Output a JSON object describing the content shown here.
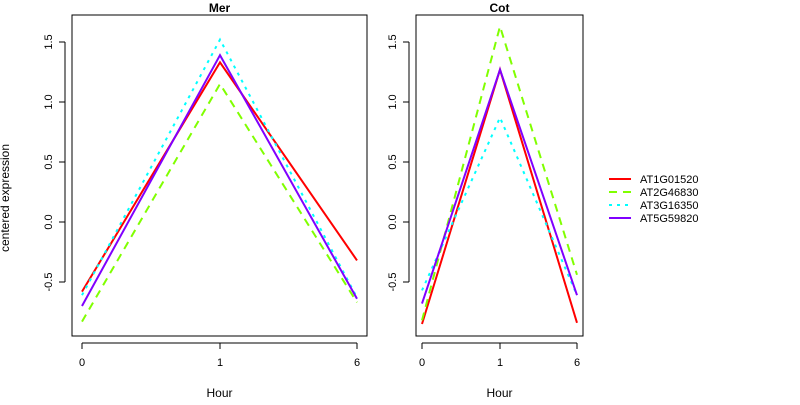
{
  "chart_data": {
    "type": "line",
    "ylabel": "centered expression",
    "legend": {
      "placement": "right",
      "entries": [
        {
          "name": "AT1G01520",
          "color": "#ff0000",
          "dash": "solid"
        },
        {
          "name": "AT2G46830",
          "color": "#80ff00",
          "dash": "dashed"
        },
        {
          "name": "AT3G16350",
          "color": "#00ffff",
          "dash": "dotted"
        },
        {
          "name": "AT5G59820",
          "color": "#8000ff",
          "dash": "solid"
        }
      ]
    },
    "panels": [
      {
        "title": "Mer",
        "xlabel": "Hour",
        "categories": [
          "0",
          "1",
          "6"
        ],
        "ylim": [
          -0.92,
          1.72
        ],
        "yticks": [
          "-0.5",
          "0.0",
          "0.5",
          "1.0",
          "1.5"
        ],
        "series": [
          {
            "name": "AT1G01520",
            "values": [
              -0.58,
              1.33,
              -0.32
            ]
          },
          {
            "name": "AT2G46830",
            "values": [
              -0.83,
              1.15,
              -0.67
            ]
          },
          {
            "name": "AT3G16350",
            "values": [
              -0.61,
              1.52,
              -0.63
            ]
          },
          {
            "name": "AT5G59820",
            "values": [
              -0.7,
              1.39,
              -0.64
            ]
          }
        ]
      },
      {
        "title": "Cot",
        "xlabel": "Hour",
        "categories": [
          "0",
          "1",
          "6"
        ],
        "ylim": [
          -0.92,
          1.72
        ],
        "yticks": [
          "-0.5",
          "0.0",
          "0.5",
          "1.0",
          "1.5"
        ],
        "series": [
          {
            "name": "AT1G01520",
            "values": [
              -0.85,
              1.27,
              -0.84
            ]
          },
          {
            "name": "AT2G46830",
            "values": [
              -0.82,
              1.63,
              -0.44
            ]
          },
          {
            "name": "AT3G16350",
            "values": [
              -0.57,
              0.87,
              -0.61
            ]
          },
          {
            "name": "AT5G59820",
            "values": [
              -0.68,
              1.27,
              -0.61
            ]
          }
        ]
      }
    ]
  }
}
